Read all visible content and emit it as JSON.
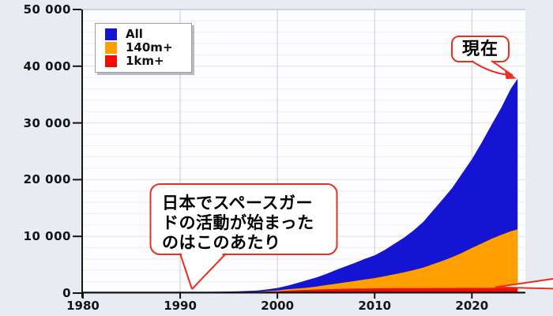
{
  "chart_data": {
    "type": "area",
    "title": "",
    "xlabel": "",
    "ylabel": "",
    "xlim": [
      1980,
      2025.5
    ],
    "ylim": [
      0,
      50000
    ],
    "grid": true,
    "legend_position": "top-left",
    "x_ticks": [
      1980,
      1990,
      2000,
      2010,
      2020
    ],
    "x_tick_labels": [
      "1980",
      "1990",
      "2000",
      "2010",
      "2020"
    ],
    "y_ticks": [
      0,
      10000,
      20000,
      30000,
      40000,
      50000
    ],
    "y_tick_labels": [
      "0",
      "10 000",
      "20 000",
      "30 000",
      "40 000",
      "50 000"
    ],
    "y_minor_step": 2000,
    "x": [
      1980,
      1982,
      1984,
      1986,
      1988,
      1990,
      1992,
      1994,
      1996,
      1998,
      1999,
      2000,
      2001,
      2002,
      2003,
      2004,
      2005,
      2006,
      2007,
      2008,
      2009,
      2010,
      2011,
      2012,
      2013,
      2014,
      2015,
      2016,
      2017,
      2018,
      2019,
      2020,
      2021,
      2022,
      2023,
      2024,
      2024.7
    ],
    "series": [
      {
        "name": "All",
        "color": "#1414d2",
        "values": [
          60,
          75,
          95,
          110,
          125,
          140,
          185,
          230,
          300,
          450,
          650,
          900,
          1300,
          1750,
          2250,
          2750,
          3350,
          4050,
          4700,
          5350,
          6050,
          6650,
          7550,
          8650,
          9750,
          11050,
          12550,
          14550,
          16550,
          18600,
          21100,
          23600,
          26500,
          29600,
          32600,
          36000,
          37800
        ]
      },
      {
        "name": "140m+",
        "color": "#ffa000",
        "values": [
          30,
          40,
          50,
          60,
          70,
          85,
          105,
          130,
          170,
          250,
          350,
          480,
          650,
          800,
          950,
          1150,
          1400,
          1650,
          1900,
          2150,
          2400,
          2650,
          2950,
          3300,
          3650,
          4050,
          4500,
          5100,
          5700,
          6350,
          7100,
          7950,
          8750,
          9550,
          10250,
          10900,
          11250
        ]
      },
      {
        "name": "1km+",
        "color": "#f50a00",
        "values": [
          20,
          28,
          36,
          44,
          52,
          62,
          82,
          102,
          132,
          182,
          252,
          322,
          422,
          502,
          562,
          622,
          682,
          722,
          762,
          792,
          812,
          832,
          852,
          862,
          872,
          877,
          882,
          887,
          892,
          897,
          902,
          907,
          912,
          917,
          922,
          927,
          930
        ]
      }
    ]
  },
  "legend": {
    "items": [
      {
        "label": "All",
        "color": "#1414d2"
      },
      {
        "label": "140m+",
        "color": "#ffa000"
      },
      {
        "label": "1km+",
        "color": "#f50a00"
      }
    ]
  },
  "annotations": {
    "spaceguard": {
      "line1": "日本でスペースガー",
      "line2": "ドの活動が始まった",
      "line3": "のはこのあたり",
      "points_to_year": 1991
    },
    "now": {
      "label": "現在"
    }
  },
  "colors": {
    "figure_background": "#e9ebf3",
    "plot_background": "#fdfdff",
    "grid_minor": "#ededf2",
    "grid_major": "#dfe1e9",
    "grid_vertical": "#c9cdd7",
    "plot_top_border": "#c3c7d1",
    "axis": "#141414",
    "annotation_border": "#e8301f"
  }
}
